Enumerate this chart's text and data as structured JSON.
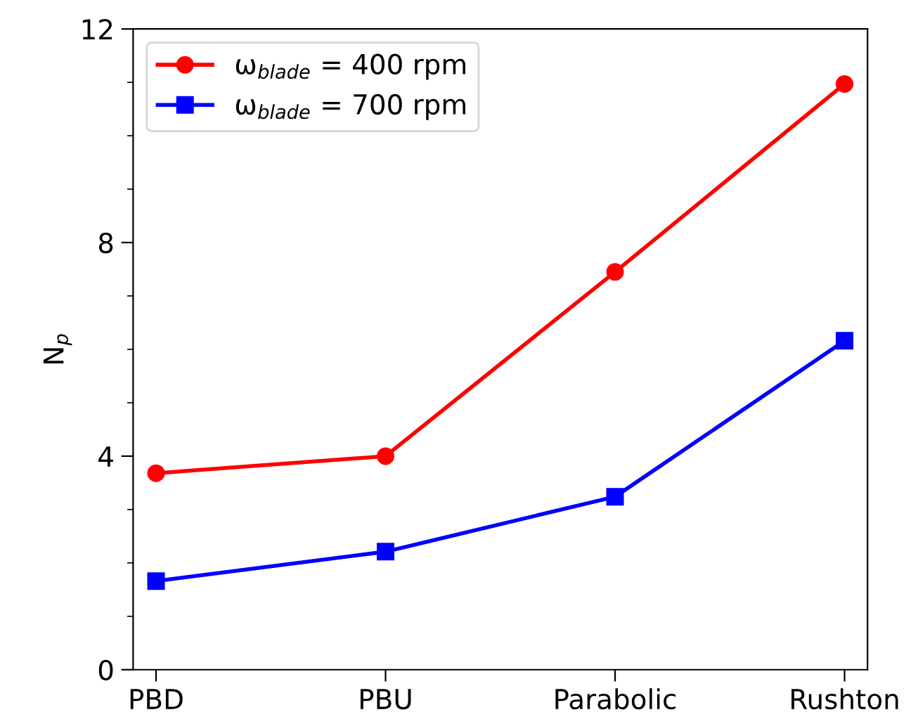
{
  "chart_data": {
    "type": "line",
    "ylabel": "N$_{p}$",
    "categories": [
      "PBD",
      "PBU",
      "Parabolic",
      "Rushton"
    ],
    "series": [
      {
        "name": "ω$_{blade}$ = 400 rpm",
        "color": "#ff0000",
        "marker": "circle",
        "values": [
          3.68,
          4.0,
          7.45,
          10.97
        ]
      },
      {
        "name": "ω$_{blade}$ = 700 rpm",
        "color": "#0000ff",
        "marker": "square",
        "values": [
          1.66,
          2.21,
          3.24,
          6.16
        ]
      }
    ],
    "ylim": [
      0,
      12
    ],
    "yticks": [
      0,
      {
        "value": 1,
        "label": null
      },
      {
        "value": 2,
        "label": null
      },
      {
        "value": 3,
        "label": null
      },
      4,
      {
        "value": 5,
        "label": null
      },
      {
        "value": 6,
        "label": null
      },
      {
        "value": 7,
        "label": null
      },
      8,
      {
        "value": 9,
        "label": null
      },
      {
        "value": 10,
        "label": null
      },
      {
        "value": 11,
        "label": null
      },
      12
    ],
    "legend": "top left",
    "grid": false,
    "line_style": "solid"
  }
}
